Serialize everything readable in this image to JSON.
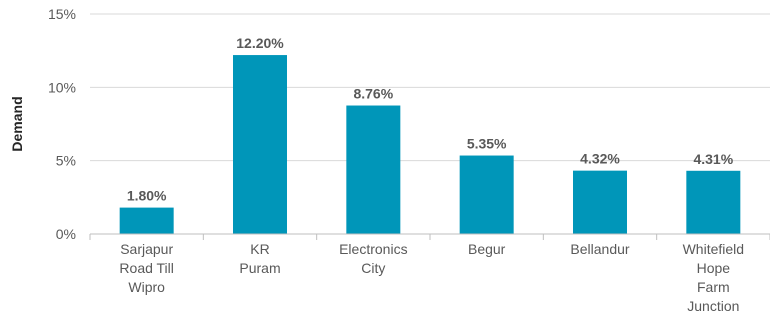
{
  "chart_data": {
    "type": "bar",
    "ylabel": "Demand",
    "ylim": [
      0,
      15
    ],
    "yticks": [
      "0%",
      "5%",
      "10%",
      "15%"
    ],
    "ytick_values": [
      0,
      5,
      10,
      15
    ],
    "grid": true,
    "bar_color": "#0096b9",
    "categories": [
      [
        "Sarjapur",
        "Road Till",
        "Wipro"
      ],
      [
        "KR",
        "Puram"
      ],
      [
        "Electronics",
        "City"
      ],
      [
        "Begur"
      ],
      [
        "Bellandur"
      ],
      [
        "Whitefield",
        "Hope",
        "Farm",
        "Junction"
      ]
    ],
    "values": [
      1.8,
      12.2,
      8.76,
      5.35,
      4.32,
      4.31
    ],
    "data_labels": [
      "1.80%",
      "12.20%",
      "8.76%",
      "5.35%",
      "4.32%",
      "4.31%"
    ]
  }
}
